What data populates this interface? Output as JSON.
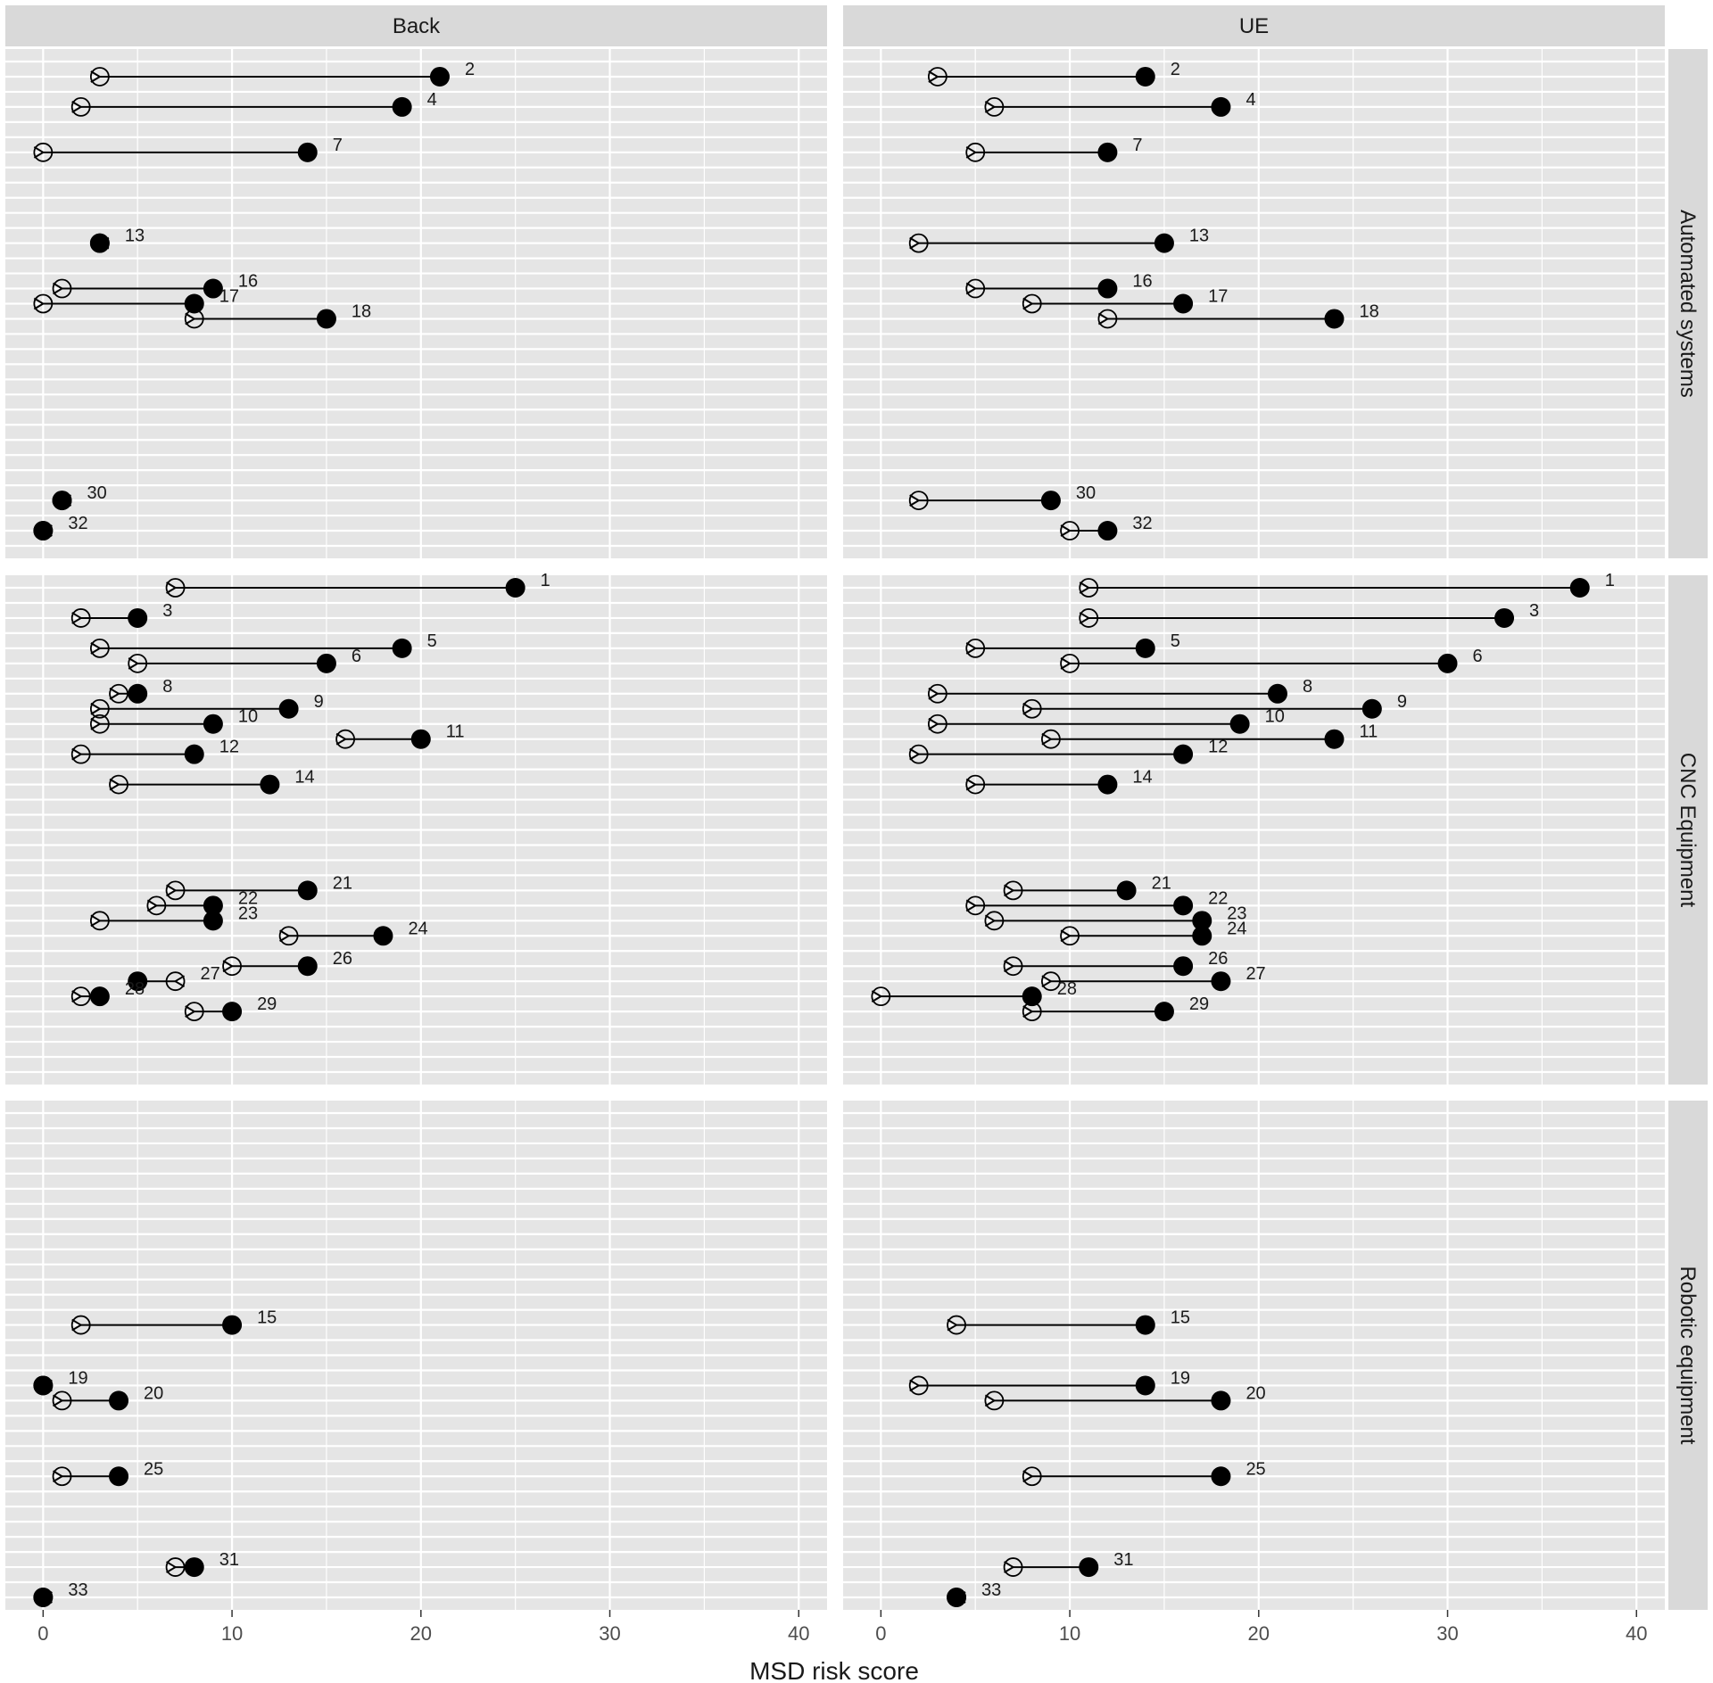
{
  "chart_data": {
    "type": "dumbbell",
    "xlabel": "MSD risk score",
    "xlim": [
      -2,
      41.5
    ],
    "xticks": [
      0,
      10,
      20,
      30,
      40
    ],
    "grid": true,
    "columns": [
      "Back",
      "UE"
    ],
    "rows": [
      {
        "label": "Automated systems",
        "ids": [
          2,
          4,
          7,
          13,
          16,
          17,
          18,
          30,
          32
        ]
      },
      {
        "label": "CNC Equipment",
        "ids": [
          1,
          3,
          5,
          6,
          8,
          9,
          10,
          11,
          12,
          14,
          21,
          22,
          23,
          24,
          26,
          27,
          28,
          29
        ]
      },
      {
        "label": "Robotic equipment",
        "ids": [
          15,
          19,
          20,
          25,
          31,
          33
        ]
      }
    ],
    "points": [
      {
        "id": 1,
        "back": [
          25,
          7
        ],
        "ue": [
          37,
          11
        ]
      },
      {
        "id": 2,
        "back": [
          21,
          3
        ],
        "ue": [
          14,
          3
        ]
      },
      {
        "id": 3,
        "back": [
          5,
          2
        ],
        "ue": [
          33,
          11
        ]
      },
      {
        "id": 4,
        "back": [
          19,
          2
        ],
        "ue": [
          18,
          6
        ]
      },
      {
        "id": 5,
        "back": [
          19,
          3
        ],
        "ue": [
          14,
          5
        ]
      },
      {
        "id": 6,
        "back": [
          15,
          5
        ],
        "ue": [
          30,
          10
        ]
      },
      {
        "id": 7,
        "back": [
          14,
          0
        ],
        "ue": [
          12,
          5
        ]
      },
      {
        "id": 8,
        "back": [
          5,
          4
        ],
        "ue": [
          21,
          3
        ]
      },
      {
        "id": 9,
        "back": [
          13,
          3
        ],
        "ue": [
          26,
          8
        ]
      },
      {
        "id": 10,
        "back": [
          9,
          3
        ],
        "ue": [
          19,
          3
        ]
      },
      {
        "id": 11,
        "back": [
          20,
          16
        ],
        "ue": [
          24,
          9
        ]
      },
      {
        "id": 12,
        "back": [
          8,
          2
        ],
        "ue": [
          16,
          2
        ]
      },
      {
        "id": 13,
        "back": [
          3,
          3
        ],
        "ue": [
          15,
          2
        ]
      },
      {
        "id": 14,
        "back": [
          12,
          4
        ],
        "ue": [
          12,
          5
        ]
      },
      {
        "id": 15,
        "back": [
          10,
          2
        ],
        "ue": [
          14,
          4
        ]
      },
      {
        "id": 16,
        "back": [
          9,
          1
        ],
        "ue": [
          12,
          5
        ]
      },
      {
        "id": 17,
        "back": [
          8,
          0
        ],
        "ue": [
          16,
          8
        ]
      },
      {
        "id": 18,
        "back": [
          15,
          8
        ],
        "ue": [
          24,
          12
        ]
      },
      {
        "id": 19,
        "back": [
          0,
          0
        ],
        "ue": [
          14,
          2
        ]
      },
      {
        "id": 20,
        "back": [
          4,
          1
        ],
        "ue": [
          18,
          6
        ]
      },
      {
        "id": 21,
        "back": [
          14,
          7
        ],
        "ue": [
          13,
          7
        ]
      },
      {
        "id": 22,
        "back": [
          9,
          6
        ],
        "ue": [
          16,
          5
        ]
      },
      {
        "id": 23,
        "back": [
          9,
          3
        ],
        "ue": [
          17,
          6
        ]
      },
      {
        "id": 24,
        "back": [
          18,
          13
        ],
        "ue": [
          17,
          10
        ]
      },
      {
        "id": 25,
        "back": [
          4,
          1
        ],
        "ue": [
          18,
          8
        ]
      },
      {
        "id": 26,
        "back": [
          14,
          10
        ],
        "ue": [
          16,
          7
        ]
      },
      {
        "id": 27,
        "back": [
          5,
          7
        ],
        "ue": [
          18,
          9
        ]
      },
      {
        "id": 28,
        "back": [
          3,
          2
        ],
        "ue": [
          8,
          0
        ]
      },
      {
        "id": 29,
        "back": [
          10,
          8
        ],
        "ue": [
          15,
          8
        ]
      },
      {
        "id": 30,
        "back": [
          1,
          1
        ],
        "ue": [
          9,
          2
        ]
      },
      {
        "id": 31,
        "back": [
          8,
          7
        ],
        "ue": [
          11,
          7
        ]
      },
      {
        "id": 32,
        "back": [
          0,
          0
        ],
        "ue": [
          12,
          10
        ]
      },
      {
        "id": 33,
        "back": [
          0,
          0
        ],
        "ue": [
          4,
          4
        ]
      }
    ]
  }
}
